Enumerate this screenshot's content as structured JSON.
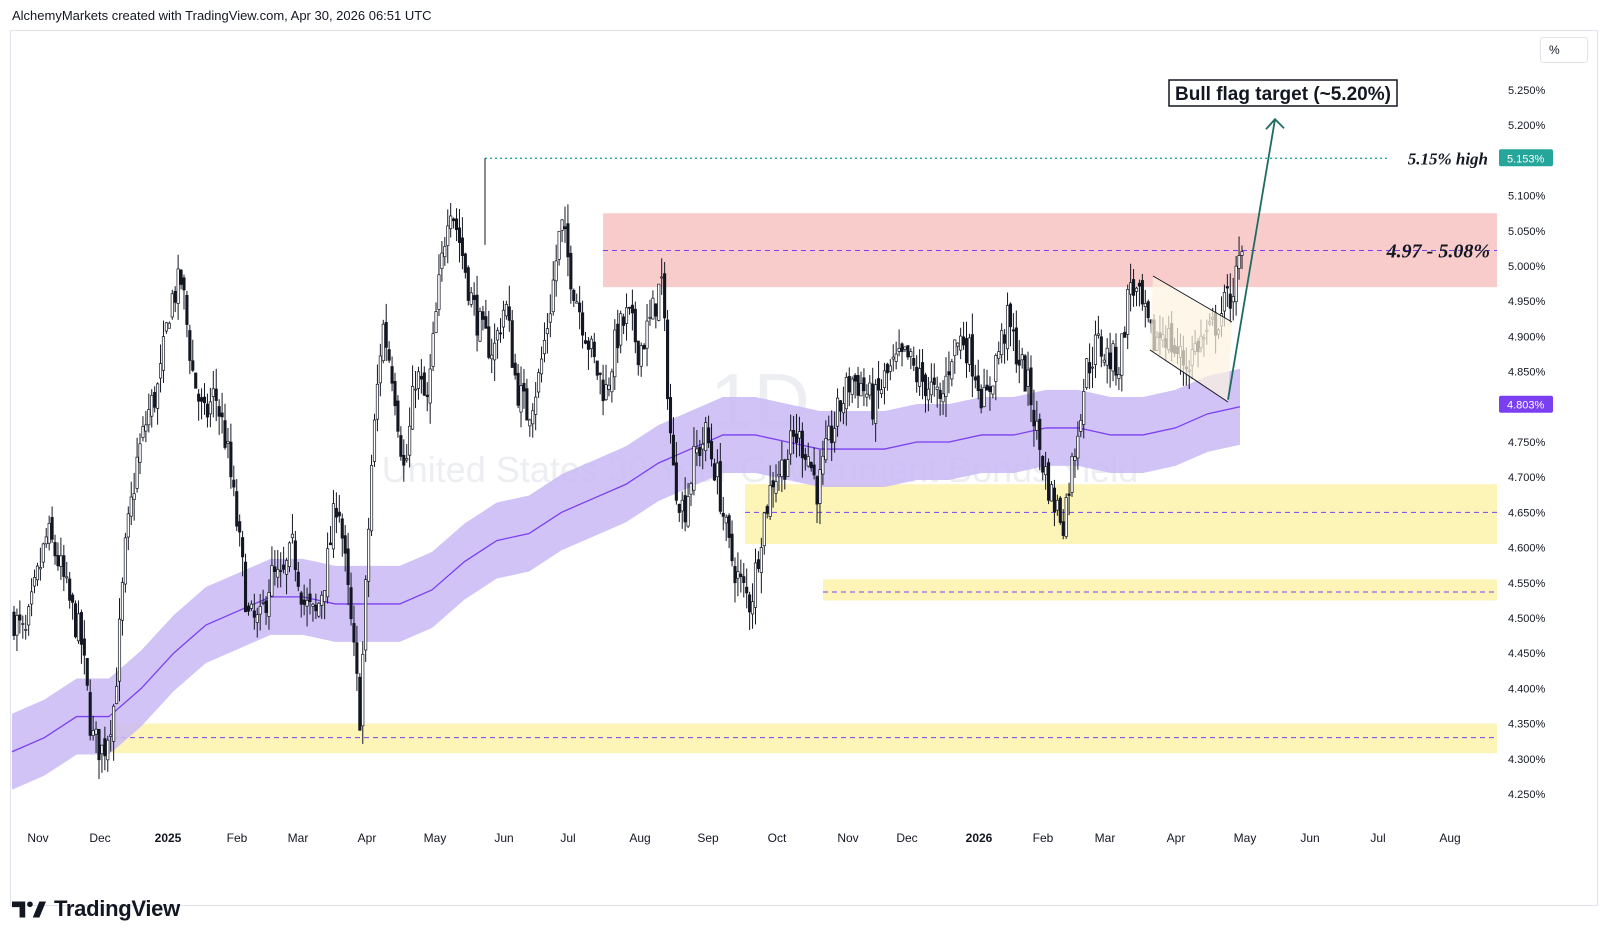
{
  "header": {
    "text": "AlchemyMarkets created with TradingView.com, Apr 30, 2026 06:51 UTC"
  },
  "toolbar": {
    "percent_label": "%"
  },
  "footer": {
    "brand": "TradingView"
  },
  "chart_data": {
    "type": "candlestick",
    "watermark": {
      "interval": "1D",
      "symbol": "United States 30 Year Government Bonds Yield"
    },
    "y_axis": {
      "unit": "%",
      "range": [
        4.2,
        5.3
      ],
      "ticks": [
        "5.250%",
        "5.200%",
        "5.150%",
        "5.100%",
        "5.050%",
        "5.000%",
        "4.950%",
        "4.900%",
        "4.850%",
        "4.800%",
        "4.750%",
        "4.700%",
        "4.650%",
        "4.600%",
        "4.550%",
        "4.500%",
        "4.450%",
        "4.400%",
        "4.350%",
        "4.300%",
        "4.250%"
      ]
    },
    "x_axis": {
      "ticks": [
        "Nov",
        "Dec",
        "2025",
        "Feb",
        "Mar",
        "Apr",
        "May",
        "Jun",
        "Jul",
        "Aug",
        "Sep",
        "Oct",
        "Nov",
        "Dec",
        "2026",
        "Feb",
        "Mar",
        "Apr",
        "May",
        "Jun",
        "Jul",
        "Aug"
      ],
      "bold_ticks": [
        "2025",
        "2026"
      ]
    },
    "price_labels": [
      {
        "text": "5.153%",
        "value": 5.153,
        "color": "#26a69a"
      },
      {
        "text": "4.803%",
        "value": 4.803,
        "color": "#7b3ff2"
      }
    ],
    "zones": [
      {
        "kind": "resistance",
        "from": 4.97,
        "to": 5.075,
        "mid": 5.022,
        "color": "#f9cccc",
        "start": "Jul"
      },
      {
        "kind": "support",
        "from": 4.605,
        "to": 4.69,
        "mid": 4.65,
        "color": "#fdf4b8",
        "start": "Sep"
      },
      {
        "kind": "support",
        "from": 4.525,
        "to": 4.555,
        "mid": 4.537,
        "color": "#fdf4b8",
        "start": "Oct"
      },
      {
        "kind": "support",
        "from": 4.308,
        "to": 4.35,
        "mid": 4.33,
        "color": "#fdf4b8",
        "start": "Dec"
      }
    ],
    "annotations": [
      {
        "text": "Bull flag target (~5.20%)",
        "kind": "boxed"
      },
      {
        "text": "5.15% high",
        "value": 5.153,
        "kind": "italic-bold"
      },
      {
        "text": "4.97 - 5.08%",
        "value": 5.022,
        "kind": "italic-bold"
      }
    ],
    "high_line": {
      "value": 5.153,
      "color": "#26a69a"
    },
    "target_arrow": {
      "from": 4.81,
      "to": 5.2,
      "color": "#1e6b62"
    },
    "moving_average": {
      "color": "#7b3ff2",
      "band_color": "#c9b8f5",
      "values": [
        4.31,
        4.33,
        4.36,
        4.36,
        4.4,
        4.45,
        4.49,
        4.51,
        4.53,
        4.53,
        4.52,
        4.52,
        4.52,
        4.54,
        4.58,
        4.61,
        4.62,
        4.65,
        4.67,
        4.69,
        4.72,
        4.74,
        4.76,
        4.76,
        4.75,
        4.74,
        4.74,
        4.74,
        4.75,
        4.75,
        4.76,
        4.76,
        4.77,
        4.77,
        4.76,
        4.76,
        4.77,
        4.79,
        4.8
      ]
    },
    "price_path": [
      4.5,
      4.47,
      4.55,
      4.62,
      4.58,
      4.52,
      4.47,
      4.33,
      4.31,
      4.38,
      4.6,
      4.72,
      4.79,
      4.83,
      4.95,
      4.98,
      4.85,
      4.78,
      4.82,
      4.75,
      4.63,
      4.5,
      4.49,
      4.56,
      4.55,
      4.6,
      4.52,
      4.5,
      4.57,
      4.68,
      4.52,
      4.36,
      4.71,
      4.92,
      4.84,
      4.7,
      4.85,
      4.8,
      4.96,
      5.1,
      5.03,
      4.95,
      4.9,
      4.88,
      4.95,
      4.83,
      4.79,
      4.84,
      4.94,
      5.06,
      4.98,
      4.92,
      4.86,
      4.82,
      4.9,
      4.93,
      4.88,
      4.92,
      4.98,
      4.71,
      4.65,
      4.73,
      4.76,
      4.7,
      4.6,
      4.55,
      4.52,
      4.63,
      4.7,
      4.72,
      4.76,
      4.74,
      4.68,
      4.75,
      4.8,
      4.84,
      4.83,
      4.8,
      4.84,
      4.86,
      4.87,
      4.84,
      4.83,
      4.8,
      4.88,
      4.9,
      4.86,
      4.8,
      4.87,
      4.92,
      4.87,
      4.82,
      4.73,
      4.67,
      4.64,
      4.74,
      4.85,
      4.89,
      4.87,
      4.86,
      4.98,
      4.94,
      4.89,
      4.91,
      4.88,
      4.86,
      4.89,
      4.9,
      4.93,
      4.96,
      5.01
    ]
  }
}
